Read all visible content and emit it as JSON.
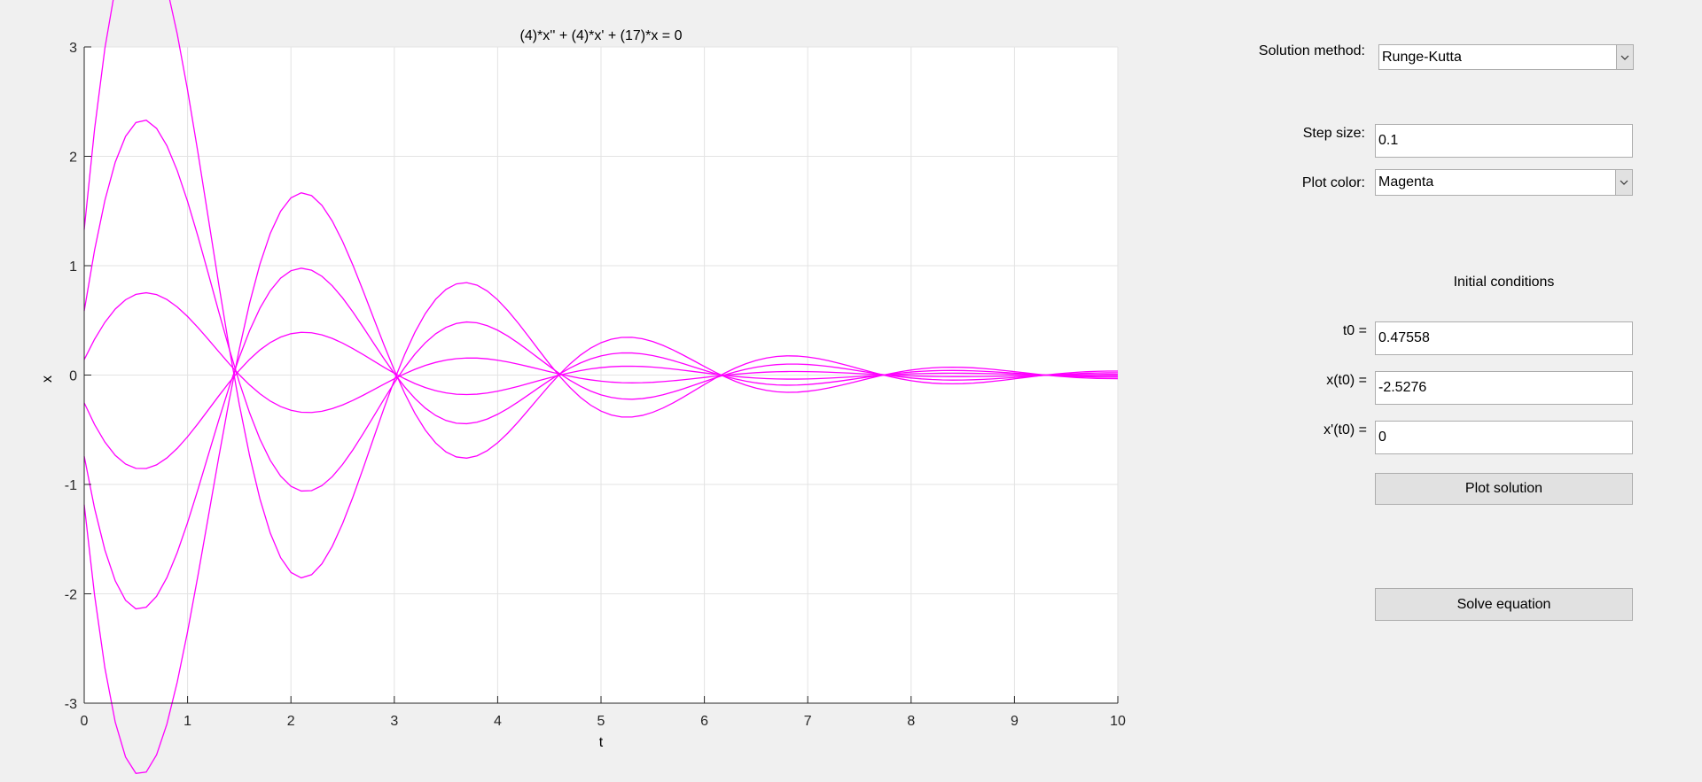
{
  "controls": {
    "solution_method_label": "Solution method:",
    "solution_method_value": "Runge-Kutta",
    "step_size_label": "Step size:",
    "step_size_value": "0.1",
    "plot_color_label": "Plot color:",
    "plot_color_value": "Magenta",
    "initial_conditions_title": "Initial conditions",
    "t0_label": "t0 =",
    "t0_value": "0.47558",
    "xt0_label": "x(t0) =",
    "xt0_value": "-2.5276",
    "dxt0_label": "x'(t0) =",
    "dxt0_value": "0",
    "plot_button": "Plot solution",
    "solve_button": "Solve equation"
  },
  "icons": {
    "dropdown": "chevron-down-icon"
  },
  "colors": {
    "plot_line": "#ff00ff"
  },
  "chart_data": {
    "type": "line",
    "title": "(4)*x'' + (4)*x' + (17)*x = 0",
    "xlabel": "t",
    "ylabel": "x",
    "xlim": [
      0,
      10
    ],
    "ylim": [
      -3,
      3
    ],
    "xticks": [
      "0",
      "1",
      "2",
      "3",
      "4",
      "5",
      "6",
      "7",
      "8",
      "9",
      "10"
    ],
    "yticks": [
      "3",
      "2",
      "1",
      "0",
      "-1",
      "-2",
      "-3"
    ],
    "grid": true,
    "equation": {
      "a": 4,
      "b": 4,
      "c": 17
    },
    "t_step": 0.1,
    "series": [
      {
        "x0": 1.33,
        "dx0": 10.0
      },
      {
        "x0": 0.586,
        "dx0": 6.0
      },
      {
        "x0": 0.141,
        "dx0": 2.0
      },
      {
        "x0": -0.254,
        "dx0": -2.15
      },
      {
        "x0": -0.742,
        "dx0": -5.2
      },
      {
        "x0": -1.185,
        "dx0": -9.0
      }
    ]
  }
}
